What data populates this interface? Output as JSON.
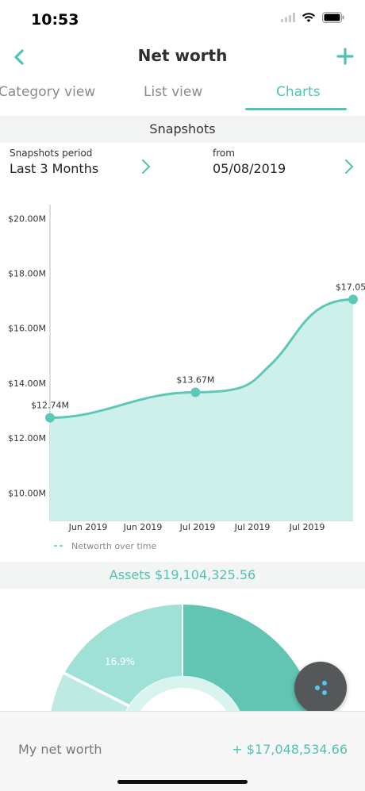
{
  "status": {
    "time": "10:53"
  },
  "header": {
    "title": "Net worth"
  },
  "tabs": [
    {
      "label": "Category view"
    },
    {
      "label": "List view"
    },
    {
      "label": "Charts"
    }
  ],
  "section_title": "Snapshots",
  "filters": {
    "period_label": "Snapshots period",
    "period_value": "Last 3 Months",
    "from_label": "from",
    "from_value": "05/08/2019"
  },
  "chart_data": {
    "type": "area",
    "title": "",
    "yticks": [
      "$10.00M",
      "$12.00M",
      "$14.00M",
      "$16.00M",
      "$18.00M",
      "$20.00M"
    ],
    "xticks": [
      "Jun 2019",
      "Jun 2019",
      "Jul 2019",
      "Jul 2019",
      "Jul 2019"
    ],
    "ylim": [
      9.0,
      20.5
    ],
    "series": [
      {
        "name": "Networth over time",
        "points": [
          {
            "x": 0.0,
            "y": 12.74,
            "label": "$12.74M"
          },
          {
            "x": 0.48,
            "y": 13.67,
            "label": "$13.67M"
          },
          {
            "x": 1.0,
            "y": 17.05,
            "label": "$17.05"
          }
        ]
      }
    ],
    "color": "#5cc9b8",
    "fill": "#cdf0ea",
    "legend_placement": "bottom-left"
  },
  "assets": {
    "label": "Assets $19,104,325.56"
  },
  "donut": {
    "slice_label": "16.9%"
  },
  "footer": {
    "label": "My net worth",
    "value": "+ $17,048,534.66"
  },
  "colors": {
    "accent": "#4fc3b4"
  }
}
